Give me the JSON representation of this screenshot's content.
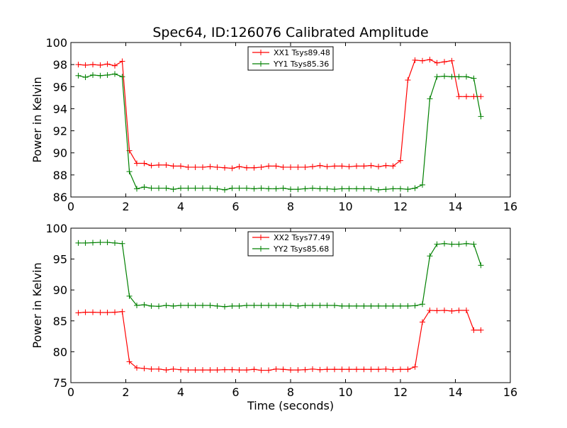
{
  "figure": {
    "title": "Spec64, ID:126076 Calibrated Amplitude",
    "xlabel": "Time (seconds)"
  },
  "chart_data": [
    {
      "type": "line",
      "title": "Spec64, ID:126076 Calibrated Amplitude",
      "xlabel": "",
      "ylabel": "Power in Kelvin",
      "xlim": [
        0,
        16
      ],
      "ylim": [
        86,
        100
      ],
      "xticks": [
        0,
        2,
        4,
        6,
        8,
        10,
        12,
        14,
        16
      ],
      "yticks": [
        86,
        88,
        90,
        92,
        94,
        96,
        98,
        100
      ],
      "grid": false,
      "legend": "top-center",
      "x": [
        0.27,
        0.53,
        0.8,
        1.07,
        1.33,
        1.6,
        1.87,
        2.13,
        2.4,
        2.67,
        2.93,
        3.2,
        3.47,
        3.73,
        4.0,
        4.27,
        4.53,
        4.8,
        5.07,
        5.33,
        5.6,
        5.87,
        6.13,
        6.4,
        6.67,
        6.93,
        7.2,
        7.47,
        7.73,
        8.0,
        8.27,
        8.53,
        8.8,
        9.07,
        9.33,
        9.6,
        9.87,
        10.13,
        10.4,
        10.67,
        10.93,
        11.2,
        11.47,
        11.73,
        12.0,
        12.27,
        12.53,
        12.8,
        13.07,
        13.33,
        13.6,
        13.87,
        14.13,
        14.4,
        14.67,
        14.93
      ],
      "series": [
        {
          "name": "XX1 Tsys89.48",
          "color": "#ff0000",
          "values": [
            98.0,
            97.95,
            98.0,
            97.95,
            98.05,
            97.9,
            98.3,
            90.2,
            89.05,
            89.05,
            88.85,
            88.9,
            88.9,
            88.8,
            88.8,
            88.7,
            88.7,
            88.7,
            88.75,
            88.7,
            88.65,
            88.6,
            88.75,
            88.65,
            88.65,
            88.7,
            88.8,
            88.8,
            88.7,
            88.7,
            88.7,
            88.7,
            88.75,
            88.85,
            88.75,
            88.8,
            88.8,
            88.75,
            88.8,
            88.8,
            88.85,
            88.75,
            88.85,
            88.8,
            89.3,
            96.6,
            98.4,
            98.35,
            98.45,
            98.15,
            98.25,
            98.35,
            95.1,
            95.1,
            95.1,
            95.1
          ]
        },
        {
          "name": "YY1 Tsys85.36",
          "color": "#008000",
          "values": [
            97.0,
            96.85,
            97.05,
            97.0,
            97.05,
            97.15,
            96.9,
            88.3,
            86.75,
            86.9,
            86.8,
            86.8,
            86.8,
            86.7,
            86.8,
            86.8,
            86.8,
            86.8,
            86.8,
            86.75,
            86.65,
            86.8,
            86.8,
            86.8,
            86.75,
            86.8,
            86.75,
            86.75,
            86.8,
            86.7,
            86.7,
            86.75,
            86.8,
            86.75,
            86.75,
            86.7,
            86.75,
            86.75,
            86.75,
            86.75,
            86.75,
            86.65,
            86.7,
            86.75,
            86.75,
            86.7,
            86.8,
            87.1,
            94.9,
            96.9,
            96.95,
            96.9,
            96.9,
            96.9,
            96.75,
            93.3
          ]
        }
      ]
    },
    {
      "type": "line",
      "title": "",
      "xlabel": "Time (seconds)",
      "ylabel": "Power in Kelvin",
      "xlim": [
        0,
        16
      ],
      "ylim": [
        75,
        100
      ],
      "xticks": [
        0,
        2,
        4,
        6,
        8,
        10,
        12,
        14,
        16
      ],
      "yticks": [
        75,
        80,
        85,
        90,
        95,
        100
      ],
      "grid": false,
      "legend": "top-center",
      "x": [
        0.27,
        0.53,
        0.8,
        1.07,
        1.33,
        1.6,
        1.87,
        2.13,
        2.4,
        2.67,
        2.93,
        3.2,
        3.47,
        3.73,
        4.0,
        4.27,
        4.53,
        4.8,
        5.07,
        5.33,
        5.6,
        5.87,
        6.13,
        6.4,
        6.67,
        6.93,
        7.2,
        7.47,
        7.73,
        8.0,
        8.27,
        8.53,
        8.8,
        9.07,
        9.33,
        9.6,
        9.87,
        10.13,
        10.4,
        10.67,
        10.93,
        11.2,
        11.47,
        11.73,
        12.0,
        12.27,
        12.53,
        12.8,
        13.07,
        13.33,
        13.6,
        13.87,
        14.13,
        14.4,
        14.67,
        14.93
      ],
      "series": [
        {
          "name": "XX2 Tsys77.49",
          "color": "#ff0000",
          "values": [
            86.3,
            86.4,
            86.4,
            86.35,
            86.35,
            86.4,
            86.5,
            78.4,
            77.4,
            77.3,
            77.2,
            77.2,
            77.05,
            77.2,
            77.1,
            77.05,
            77.05,
            77.05,
            77.05,
            77.05,
            77.1,
            77.1,
            77.05,
            77.05,
            77.15,
            77.0,
            77.0,
            77.2,
            77.15,
            77.05,
            77.05,
            77.1,
            77.2,
            77.1,
            77.15,
            77.15,
            77.15,
            77.15,
            77.15,
            77.15,
            77.15,
            77.15,
            77.2,
            77.1,
            77.15,
            77.15,
            77.55,
            84.8,
            86.7,
            86.65,
            86.7,
            86.6,
            86.7,
            86.7,
            83.5,
            83.5
          ]
        },
        {
          "name": "YY2 Tsys85.68",
          "color": "#008000",
          "values": [
            97.6,
            97.6,
            97.65,
            97.7,
            97.7,
            97.6,
            97.5,
            89.0,
            87.5,
            87.6,
            87.4,
            87.35,
            87.5,
            87.4,
            87.5,
            87.5,
            87.5,
            87.5,
            87.5,
            87.4,
            87.3,
            87.4,
            87.4,
            87.5,
            87.5,
            87.5,
            87.5,
            87.5,
            87.5,
            87.5,
            87.4,
            87.5,
            87.5,
            87.5,
            87.5,
            87.5,
            87.4,
            87.4,
            87.4,
            87.4,
            87.4,
            87.4,
            87.4,
            87.4,
            87.4,
            87.4,
            87.45,
            87.7,
            95.5,
            97.4,
            97.5,
            97.4,
            97.4,
            97.5,
            97.4,
            94.0
          ]
        }
      ]
    }
  ]
}
